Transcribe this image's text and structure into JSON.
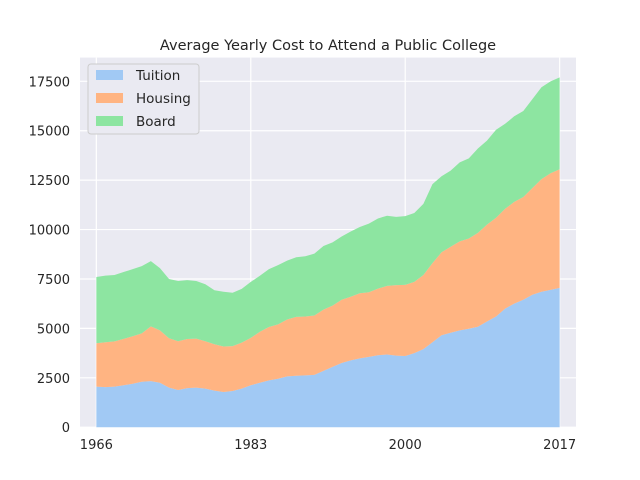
{
  "chart_data": {
    "type": "area",
    "stacked": true,
    "title": "Average Yearly Cost to Attend a Public College",
    "xlabel": "",
    "ylabel": "",
    "x_ticks": [
      1966,
      1983,
      2000,
      2017
    ],
    "y_ticks": [
      0,
      2500,
      5000,
      7500,
      10000,
      12500,
      15000,
      17500
    ],
    "y_tick_labels": [
      "0",
      "2500",
      "5000",
      "7500",
      "10000",
      "12500",
      "15000",
      "17500"
    ],
    "xlim": [
      1964.2,
      2018.8
    ],
    "ylim": [
      0,
      18700
    ],
    "grid": true,
    "legend_position": "top-left",
    "x": [
      1966,
      1967,
      1968,
      1969,
      1970,
      1971,
      1972,
      1973,
      1974,
      1975,
      1976,
      1977,
      1978,
      1979,
      1980,
      1981,
      1982,
      1983,
      1984,
      1985,
      1986,
      1987,
      1988,
      1989,
      1990,
      1991,
      1992,
      1993,
      1994,
      1995,
      1996,
      1997,
      1998,
      1999,
      2000,
      2001,
      2002,
      2003,
      2004,
      2005,
      2006,
      2007,
      2008,
      2009,
      2010,
      2011,
      2012,
      2013,
      2014,
      2015,
      2016,
      2017
    ],
    "series": [
      {
        "name": "Tuition",
        "color": "#a1c9f4",
        "values": [
          2050,
          2030,
          2050,
          2120,
          2200,
          2300,
          2330,
          2250,
          2000,
          1880,
          1980,
          2000,
          1950,
          1850,
          1780,
          1830,
          1950,
          2120,
          2250,
          2370,
          2450,
          2570,
          2600,
          2620,
          2650,
          2850,
          3050,
          3250,
          3380,
          3480,
          3560,
          3640,
          3680,
          3620,
          3600,
          3750,
          3950,
          4300,
          4650,
          4780,
          4900,
          4980,
          5080,
          5350,
          5600,
          6000,
          6250,
          6450,
          6700,
          6850,
          6950,
          7050
        ]
      },
      {
        "name": "Housing",
        "color": "#ffb482",
        "values": [
          2200,
          2270,
          2290,
          2350,
          2400,
          2450,
          2770,
          2650,
          2500,
          2470,
          2480,
          2480,
          2400,
          2350,
          2300,
          2270,
          2330,
          2400,
          2580,
          2700,
          2750,
          2880,
          2980,
          2980,
          3000,
          3100,
          3100,
          3200,
          3220,
          3300,
          3270,
          3370,
          3470,
          3570,
          3600,
          3600,
          3750,
          4000,
          4200,
          4350,
          4500,
          4570,
          4750,
          4900,
          5000,
          5050,
          5150,
          5200,
          5400,
          5700,
          5900,
          6000
        ]
      },
      {
        "name": "Board",
        "color": "#8de5a1",
        "values": [
          3350,
          3370,
          3360,
          3380,
          3400,
          3400,
          3300,
          3150,
          3000,
          3050,
          2980,
          2920,
          2880,
          2730,
          2770,
          2700,
          2720,
          2830,
          2830,
          2930,
          3000,
          2980,
          3020,
          3050,
          3130,
          3220,
          3200,
          3200,
          3300,
          3350,
          3470,
          3550,
          3550,
          3450,
          3480,
          3490,
          3600,
          4000,
          3850,
          3850,
          4000,
          4050,
          4270,
          4250,
          4450,
          4300,
          4330,
          4350,
          4500,
          4650,
          4650,
          4650
        ]
      }
    ]
  }
}
